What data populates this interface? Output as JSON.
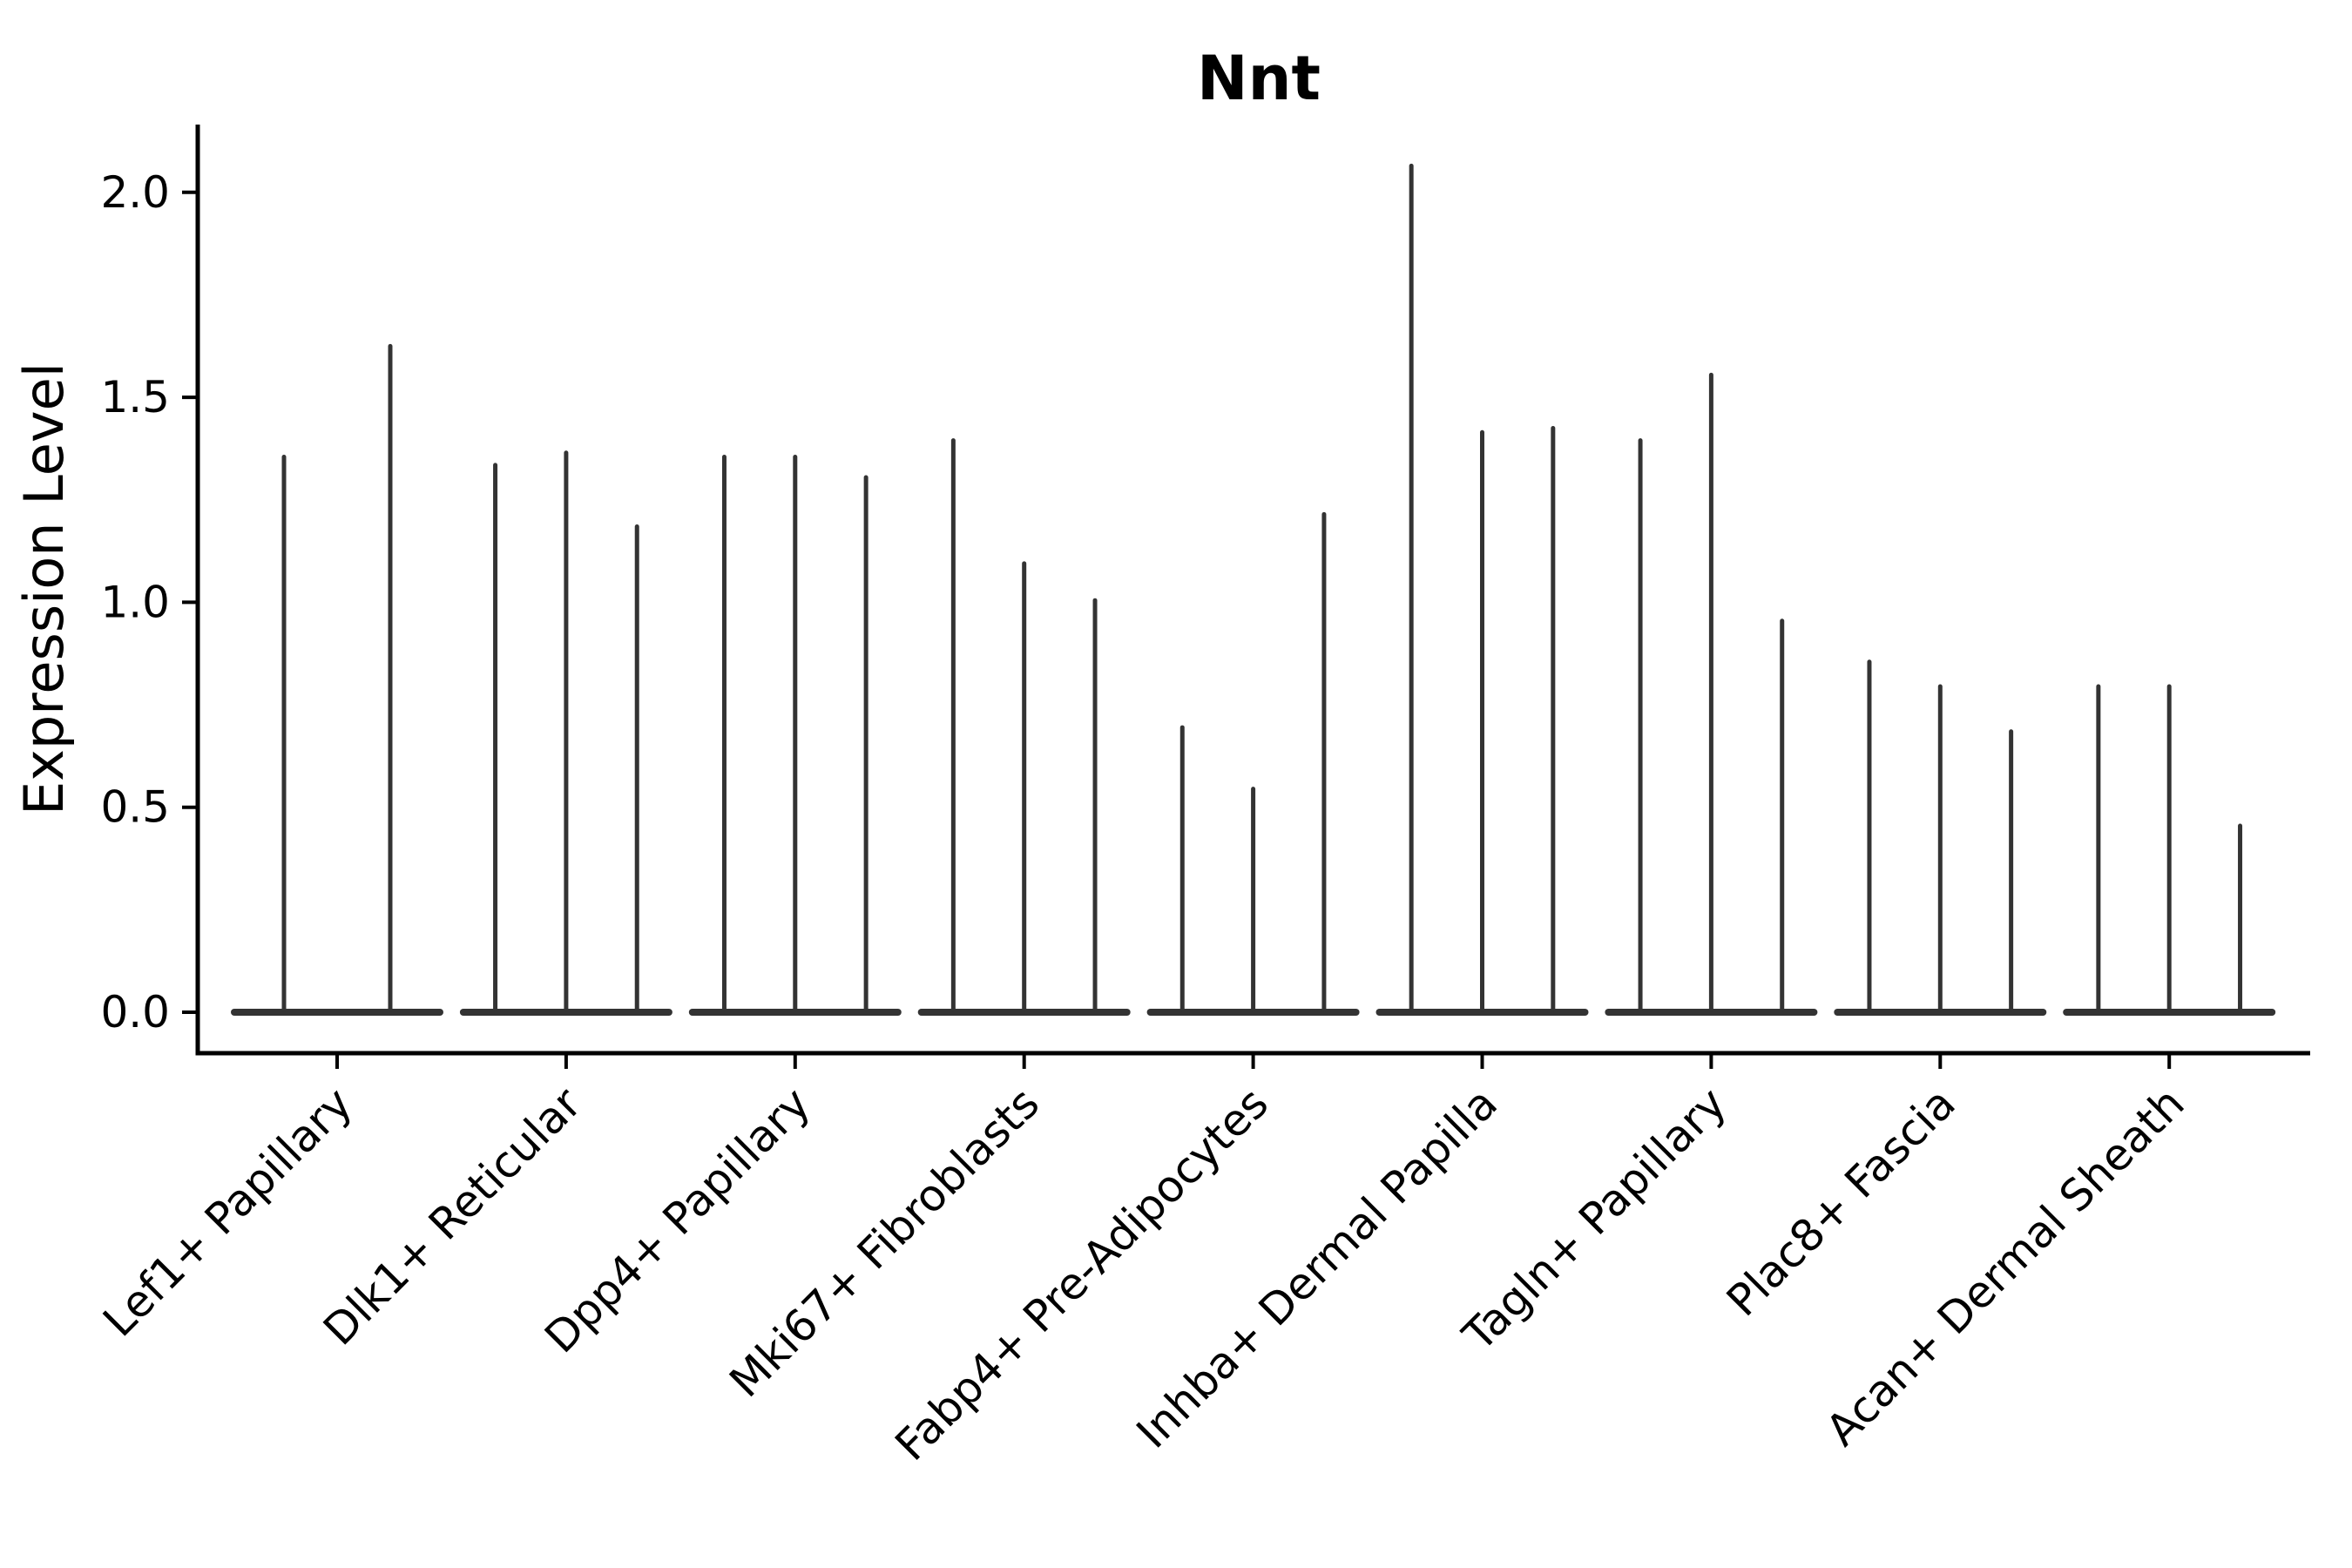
{
  "chart_data": {
    "type": "violin",
    "title": "Nnt",
    "xlabel": "",
    "ylabel": "Expression Level",
    "ytick_labels": [
      "0.0",
      "0.5",
      "1.0",
      "1.5",
      "2.0"
    ],
    "ytick_values": [
      0.0,
      0.5,
      1.0,
      1.5,
      2.0
    ],
    "ylim": [
      -0.1,
      2.17
    ],
    "grid": false,
    "legend": "none",
    "x_tick_rotation_deg": 45,
    "violin_baseline_value": 0.0,
    "violin_shape_note": "each violin is a flat body at 0 with a thin spike up to its max expression value",
    "style": {
      "violin_color": "#333333",
      "axis_color": "#000000",
      "text_color": "#000000",
      "background": "#ffffff"
    },
    "categories": [
      "Lef1+ Papillary",
      "Dlk1+ Reticular",
      "Dpp4+ Papillary",
      "Mki67+ Fibroblasts",
      "Fabp4+ Pre-Adipocytes",
      "Inhba+ Dermal Papilla",
      "Tagln+ Papillary",
      "Plac8+ Fascia",
      "Acan+ Dermal Sheath"
    ],
    "series": [
      {
        "category": "Lef1+ Papillary",
        "spike_max_values": [
          1.36,
          1.63
        ]
      },
      {
        "category": "Dlk1+ Reticular",
        "spike_max_values": [
          1.34,
          1.37,
          1.19
        ]
      },
      {
        "category": "Dpp4+ Papillary",
        "spike_max_values": [
          1.36,
          1.36,
          1.31
        ]
      },
      {
        "category": "Mki67+ Fibroblasts",
        "spike_max_values": [
          1.4,
          1.1,
          1.01
        ]
      },
      {
        "category": "Fabp4+ Pre-Adipocytes",
        "spike_max_values": [
          0.7,
          0.55,
          1.22
        ]
      },
      {
        "category": "Inhba+ Dermal Papilla",
        "spike_max_values": [
          2.07,
          1.42,
          1.43
        ]
      },
      {
        "category": "Tagln+ Papillary",
        "spike_max_values": [
          1.4,
          1.56,
          0.96
        ]
      },
      {
        "category": "Plac8+ Fascia",
        "spike_max_values": [
          0.86,
          0.8,
          0.69
        ]
      },
      {
        "category": "Acan+ Dermal Sheath",
        "spike_max_values": [
          0.8,
          0.8,
          0.46
        ]
      }
    ]
  }
}
